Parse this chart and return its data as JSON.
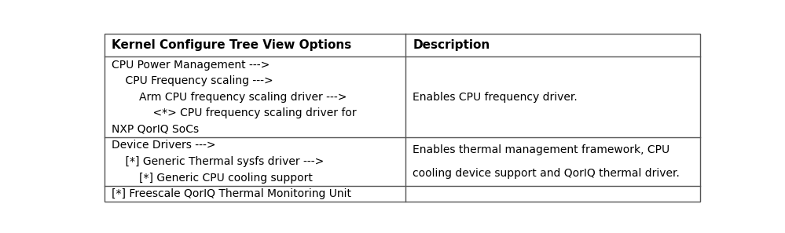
{
  "title_col1": "Kernel Configure Tree View Options",
  "title_col2": "Description",
  "rows": [
    {
      "col1_lines": [
        "CPU Power Management --->",
        "    CPU Frequency scaling --->",
        "        Arm CPU frequency scaling driver --->",
        "            <*> CPU frequency scaling driver for",
        "NXP QorIQ SoCs"
      ],
      "col2_lines": [
        "Enables CPU frequency driver."
      ]
    },
    {
      "col1_lines": [
        "Device Drivers --->",
        "    [*] Generic Thermal sysfs driver --->",
        "        [*] Generic CPU cooling support"
      ],
      "col2_lines": [
        "Enables thermal management framework, CPU",
        "cooling device support and QorIQ thermal driver."
      ]
    },
    {
      "col1_lines": [
        "[*] Freescale QorIQ Thermal Monitoring Unit"
      ],
      "col2_lines": []
    }
  ],
  "col_split": 0.505,
  "border_color": "#555555",
  "header_font_size": 11,
  "cell_font_size": 10,
  "text_color": "#000000",
  "fig_bg": "#ffffff"
}
